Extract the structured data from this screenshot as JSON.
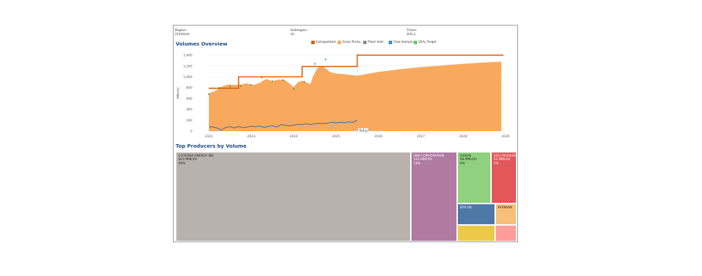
{
  "filters": [
    {
      "label": "Region:",
      "value": "PERMIAN"
    },
    {
      "label": "Subregion:",
      "value": "All"
    },
    {
      "label": "Ticker:",
      "value": "WPLS"
    }
  ],
  "volumes_title": "Volumes Overview",
  "producers_title": "Top Producers by Volume",
  "legend": [
    {
      "label": "Extrapolated",
      "color": "#d85f0e"
    },
    {
      "label": "Gross Produ..",
      "color": "#f9a95e"
    },
    {
      "label": "Plant Inlet",
      "color": "#8c8c96"
    },
    {
      "label": "Flow Sample",
      "color": "#3a8fc4"
    },
    {
      "label": "Qtrly Target",
      "color": "#6cc26c"
    }
  ],
  "chart_data": [
    {
      "type": "area",
      "title": "Volumes Overview",
      "ylabel": "MMcf/d",
      "xlabel": "",
      "xlim": [
        2022.0,
        2029.0
      ],
      "ylim": [
        0,
        1450
      ],
      "x_ticks": [
        2022,
        2023,
        2024,
        2025,
        2026,
        2027,
        2028,
        2029
      ],
      "x_tick_labels": [
        "2022",
        "2023",
        "2024",
        "2025",
        "2026",
        "2027",
        "2028",
        "2029"
      ],
      "y_ticks": [
        0,
        200,
        400,
        600,
        800,
        1000,
        1200,
        1400
      ],
      "y_tick_labels": [
        "0",
        "200",
        "400",
        "600",
        "800",
        "1,000",
        "1,200",
        "1,400"
      ],
      "grid": true,
      "legend_position": "top-right",
      "today_marker": {
        "x": 2025.5,
        "label": "Today"
      },
      "series": [
        {
          "name": "Gross Produ..",
          "type": "area",
          "color": "#f9a95e",
          "x": [
            2022.0,
            2022.15,
            2022.3,
            2022.45,
            2022.6,
            2022.75,
            2022.9,
            2023.05,
            2023.2,
            2023.35,
            2023.5,
            2023.65,
            2023.8,
            2023.9,
            2024.0,
            2024.1,
            2024.2,
            2024.3,
            2024.4,
            2024.45,
            2024.55,
            2024.65,
            2024.75,
            2024.85,
            2025.0,
            2025.2,
            2025.4,
            2025.5,
            2025.6,
            2026.0,
            2026.5,
            2027.0,
            2027.5,
            2028.0,
            2028.5,
            2028.9
          ],
          "values": [
            700,
            740,
            820,
            860,
            850,
            860,
            880,
            850,
            890,
            960,
            920,
            950,
            940,
            880,
            810,
            900,
            930,
            900,
            870,
            1000,
            1150,
            1200,
            1160,
            1090,
            1060,
            1050,
            1030,
            1020,
            1035,
            1090,
            1140,
            1180,
            1210,
            1240,
            1265,
            1280
          ]
        },
        {
          "name": "Extrapolated",
          "type": "step",
          "color": "#d85f0e",
          "x": [
            2022.0,
            2022.7,
            2022.7,
            2024.2,
            2024.2,
            2025.5,
            2025.5,
            2028.95
          ],
          "values": [
            790,
            790,
            1000,
            1000,
            1190,
            1190,
            1400,
            1400
          ]
        },
        {
          "name": "Flow Sample",
          "type": "line",
          "color": "#3a8fc4",
          "x": [
            2022.0,
            2022.1,
            2022.2,
            2022.3,
            2022.4,
            2022.5,
            2022.6,
            2022.7,
            2022.8,
            2022.9,
            2023.0,
            2023.1,
            2023.2,
            2023.3,
            2023.4,
            2023.5,
            2023.6,
            2023.7,
            2023.8,
            2023.9,
            2024.0,
            2024.1,
            2024.2,
            2024.3,
            2024.4,
            2024.5,
            2024.6,
            2024.7,
            2024.8,
            2024.9,
            2025.0,
            2025.1,
            2025.2,
            2025.3,
            2025.4,
            2025.5
          ],
          "values": [
            80,
            75,
            55,
            20,
            70,
            80,
            60,
            85,
            65,
            75,
            90,
            80,
            95,
            70,
            85,
            100,
            75,
            120,
            110,
            95,
            110,
            125,
            120,
            135,
            120,
            135,
            145,
            140,
            145,
            165,
            150,
            165,
            155,
            170,
            160,
            200
          ]
        },
        {
          "name": "Qtrly Target",
          "type": "scatter",
          "color": "#3aa04a",
          "x": [
            2022.0,
            2022.25,
            2022.5,
            2022.75,
            2023.0,
            2023.25,
            2023.5,
            2023.75,
            2024.0,
            2024.25,
            2024.5,
            2024.75
          ],
          "values": [
            680,
            800,
            820,
            830,
            850,
            990,
            920,
            940,
            780,
            910,
            1240,
            1320
          ]
        }
      ]
    },
    {
      "type": "treemap",
      "title": "Top Producers by Volume",
      "units": "MMcf/d",
      "items": [
        {
          "name": "COTERRA ENERGY INC",
          "value": 823,
          "value_label": "823 MMcf/d",
          "pct_label": "69%",
          "color": "#b9b1ab"
        },
        {
          "name": "OBK CORPORATION",
          "value": 163,
          "value_label": "163 MMcf/d",
          "pct_label": "14%",
          "color": "#b07aa1"
        },
        {
          "name": "EXXON",
          "value": 68,
          "value_label": "68 MMcf/d",
          "pct_label": "6%",
          "color": "#8fd17e"
        },
        {
          "name": "EOG RESOURCES, INC",
          "value": 52,
          "value_label": "52 MMcf/d",
          "pct_label": "4%",
          "color": "#e1575a"
        },
        {
          "name": "BTA OIL",
          "value": 32,
          "value_label": "",
          "pct_label": "",
          "color": "#4e79a7"
        },
        {
          "name": "",
          "value": 24,
          "value_label": "",
          "pct_label": "",
          "color": "#edc94a"
        },
        {
          "name": "PERMIAN",
          "value": 18,
          "value_label": "",
          "pct_label": "",
          "color": "#f7c07a"
        },
        {
          "name": "",
          "value": 14,
          "value_label": "",
          "pct_label": "",
          "color": "#ff9d9a"
        }
      ]
    }
  ]
}
